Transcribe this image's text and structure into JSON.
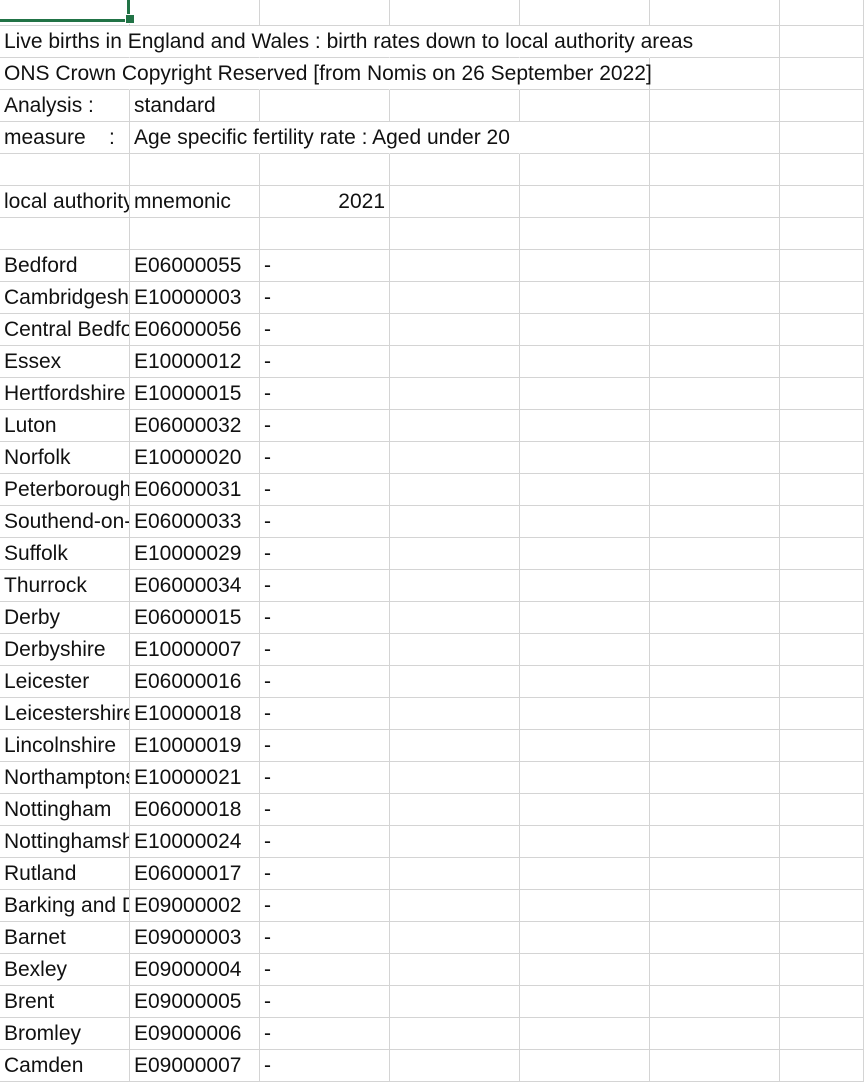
{
  "title_rows": [
    "Live births in England and Wales : birth rates down to local authority areas",
    "ONS Crown Copyright Reserved [from Nomis on 26 September 2022]"
  ],
  "analysis": {
    "label": "Analysis  :",
    "value": "standard"
  },
  "measure": {
    "label": "measure    :",
    "value": "Age specific fertility rate : Aged under 20"
  },
  "headers": {
    "col_a": "local authority",
    "col_b": "mnemonic",
    "col_c": "2021"
  },
  "rows": [
    {
      "name": "Bedford",
      "code": "E06000055",
      "value": "-"
    },
    {
      "name": "Cambridgeshire",
      "code": "E10000003",
      "value": "-"
    },
    {
      "name": "Central Bedfordshire",
      "code": "E06000056",
      "value": "-"
    },
    {
      "name": "Essex",
      "code": "E10000012",
      "value": "-"
    },
    {
      "name": "Hertfordshire",
      "code": "E10000015",
      "value": "-"
    },
    {
      "name": "Luton",
      "code": "E06000032",
      "value": "-"
    },
    {
      "name": "Norfolk",
      "code": "E10000020",
      "value": "-"
    },
    {
      "name": "Peterborough",
      "code": "E06000031",
      "value": "-"
    },
    {
      "name": "Southend-on-Sea",
      "code": "E06000033",
      "value": "-"
    },
    {
      "name": "Suffolk",
      "code": "E10000029",
      "value": "-"
    },
    {
      "name": "Thurrock",
      "code": "E06000034",
      "value": "-"
    },
    {
      "name": "Derby",
      "code": "E06000015",
      "value": "-"
    },
    {
      "name": "Derbyshire",
      "code": "E10000007",
      "value": "-"
    },
    {
      "name": "Leicester",
      "code": "E06000016",
      "value": "-"
    },
    {
      "name": "Leicestershire",
      "code": "E10000018",
      "value": "-"
    },
    {
      "name": "Lincolnshire",
      "code": "E10000019",
      "value": "-"
    },
    {
      "name": "Northamptonshire",
      "code": "E10000021",
      "value": "-"
    },
    {
      "name": "Nottingham",
      "code": "E06000018",
      "value": "-"
    },
    {
      "name": "Nottinghamshire",
      "code": "E10000024",
      "value": "-"
    },
    {
      "name": "Rutland",
      "code": "E06000017",
      "value": "-"
    },
    {
      "name": "Barking and Dagenham",
      "code": "E09000002",
      "value": "-"
    },
    {
      "name": "Barnet",
      "code": "E09000003",
      "value": "-"
    },
    {
      "name": "Bexley",
      "code": "E09000004",
      "value": "-"
    },
    {
      "name": "Brent",
      "code": "E09000005",
      "value": "-"
    },
    {
      "name": "Bromley",
      "code": "E09000006",
      "value": "-"
    },
    {
      "name": "Camden",
      "code": "E09000007",
      "value": "-"
    }
  ]
}
